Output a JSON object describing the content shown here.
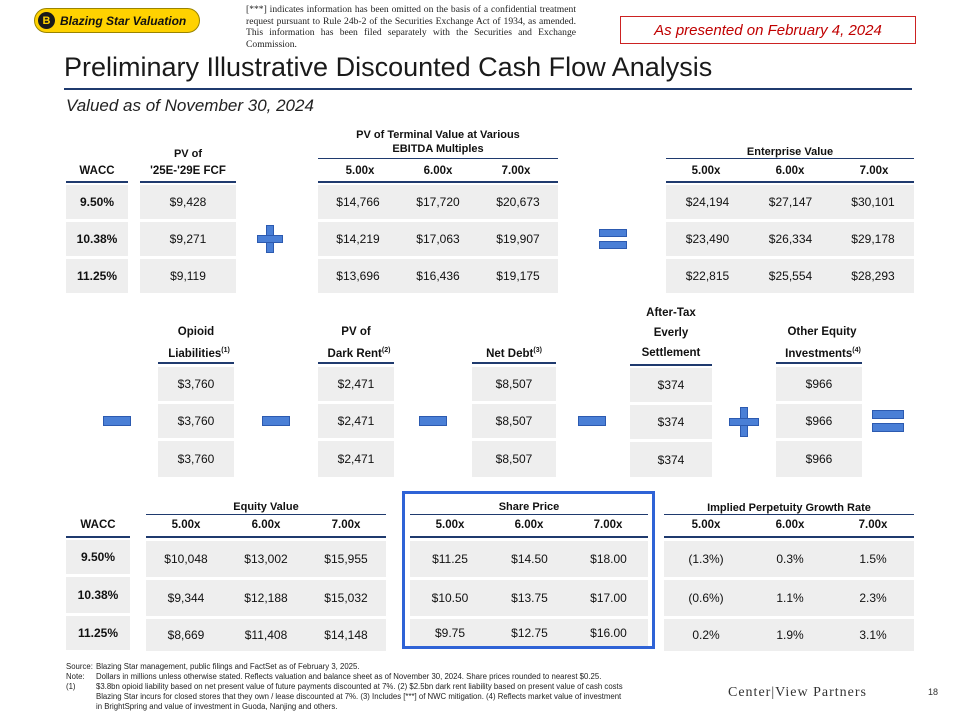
{
  "badge": {
    "letter": "B",
    "label": "Blazing Star Valuation"
  },
  "omission_note": "[***] indicates information has been omitted on the basis of a confidential treatment request pursuant to Rule 24b-2 of the Securities Exchange Act of 1934, as amended. This information has been filed separately with the Securities and Exchange Commission.",
  "presented": "As presented on February 4, 2024",
  "title": "Preliminary Illustrative Discounted Cash Flow Analysis",
  "subtitle": "Valued as of November 30, 2024",
  "top": {
    "wacc_header": "WACC",
    "pv_fcf_header_1": "PV of",
    "pv_fcf_header_2": "'25E-'29E FCF",
    "pv_tv_header_1": "PV of Terminal Value at Various",
    "pv_tv_header_2": "EBITDA Multiples",
    "ev_header": "Enterprise Value",
    "multiples": [
      "5.00x",
      "6.00x",
      "7.00x"
    ],
    "wacc": [
      "9.50%",
      "10.38%",
      "11.25%"
    ],
    "pv_fcf": [
      "$9,428",
      "$9,271",
      "$9,119"
    ],
    "pv_tv": [
      [
        "$14,766",
        "$17,720",
        "$20,673"
      ],
      [
        "$14,219",
        "$17,063",
        "$19,907"
      ],
      [
        "$13,696",
        "$16,436",
        "$19,175"
      ]
    ],
    "ev": [
      [
        "$24,194",
        "$27,147",
        "$30,101"
      ],
      [
        "$23,490",
        "$26,334",
        "$29,178"
      ],
      [
        "$22,815",
        "$25,554",
        "$28,293"
      ]
    ]
  },
  "middle": {
    "opioid_1": "Opioid",
    "opioid_2": "Liabilities",
    "opioid_sup": "(1)",
    "dark_1": "PV of",
    "dark_2": "Dark Rent",
    "dark_sup": "(2)",
    "net_debt": "Net Debt",
    "net_debt_sup": "(3)",
    "evs_1": "After-Tax",
    "evs_2": "Everly",
    "evs_3": "Settlement",
    "other_1": "Other Equity",
    "other_2": "Investments",
    "other_sup": "(4)",
    "opioid": [
      "$3,760",
      "$3,760",
      "$3,760"
    ],
    "dark": [
      "$2,471",
      "$2,471",
      "$2,471"
    ],
    "debt": [
      "$8,507",
      "$8,507",
      "$8,507"
    ],
    "everly": [
      "$374",
      "$374",
      "$374"
    ],
    "other": [
      "$966",
      "$966",
      "$966"
    ]
  },
  "bottom": {
    "wacc_header": "WACC",
    "equity_header": "Equity Value",
    "share_header": "Share Price",
    "growth_header": "Implied Perpetuity Growth Rate",
    "multiples": [
      "5.00x",
      "6.00x",
      "7.00x"
    ],
    "wacc": [
      "9.50%",
      "10.38%",
      "11.25%"
    ],
    "equity": [
      [
        "$10,048",
        "$13,002",
        "$15,955"
      ],
      [
        "$9,344",
        "$12,188",
        "$15,032"
      ],
      [
        "$8,669",
        "$11,408",
        "$14,148"
      ]
    ],
    "share": [
      [
        "$11.25",
        "$14.50",
        "$18.00"
      ],
      [
        "$10.50",
        "$13.75",
        "$17.00"
      ],
      [
        "$9.75",
        "$12.75",
        "$16.00"
      ]
    ],
    "growth": [
      [
        "(1.3%)",
        "0.3%",
        "1.5%"
      ],
      [
        "(0.6%)",
        "1.1%",
        "2.3%"
      ],
      [
        "0.2%",
        "1.9%",
        "3.1%"
      ]
    ]
  },
  "footnotes": {
    "source_label": "Source:",
    "source": "Blazing Star management, public filings and FactSet as of February 3, 2025.",
    "note_label": "Note:",
    "note": "Dollars in millions unless otherwise stated. Reflects valuation and balance sheet as of November 30, 2024. Share prices rounded to nearest $0.25.",
    "fn1_label": "(1)",
    "fn1_a": "$3.8bn opioid liability based on net present value of future payments discounted at 7%.  (2) $2.5bn dark rent liability based on present value of cash costs",
    "fn1_b": "Blazing Star incurs for closed stores that they own / lease discounted at 7%. (3) Includes    [***]    of NWC mitigation. (4) Reflects market value of investment",
    "fn1_c": "in BrightSpring and value of investment in Guoda, Nanjing and others."
  },
  "logo": "Center|View Partners",
  "page_number": "18"
}
